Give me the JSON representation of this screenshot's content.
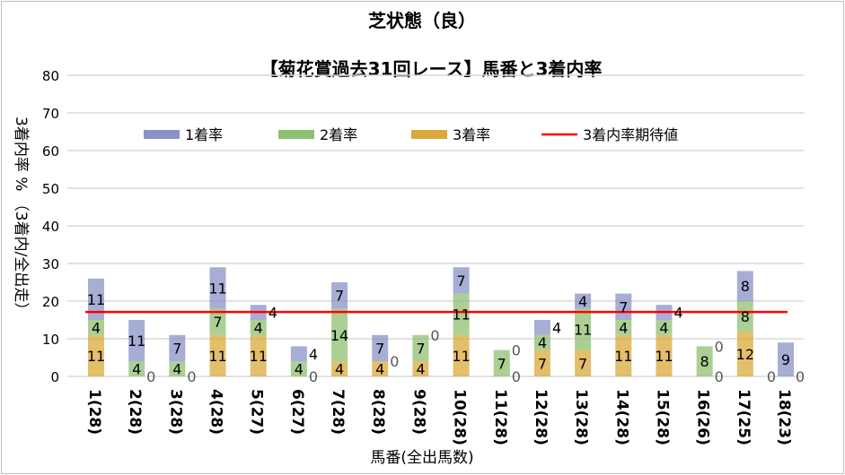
{
  "chart_data": {
    "type": "bar",
    "stacked": true,
    "title": "芝状態（良）",
    "subtitle": "【菊花賞過去31回レース】馬番と3着内率",
    "xlabel": "馬番(全出馬数)",
    "ylabel": "3着内率 %  （3着内/全出走）",
    "ylim": [
      0,
      80
    ],
    "yticks": [
      0,
      10,
      20,
      30,
      40,
      50,
      60,
      70,
      80
    ],
    "grid": true,
    "legend_position": "top",
    "categories": [
      "1(28)",
      "2(28)",
      "3(28)",
      "4(28)",
      "5(27)",
      "6(27)",
      "7(28)",
      "8(28)",
      "9(28)",
      "10(28)",
      "11(28)",
      "12(28)",
      "13(28)",
      "14(28)",
      "15(28)",
      "16(26)",
      "17(25)",
      "18(23)"
    ],
    "series": [
      {
        "name": "3着率",
        "color": "#d9a93a",
        "values": [
          11,
          0,
          0,
          11,
          11,
          0,
          4,
          4,
          4,
          11,
          0,
          7,
          7,
          11,
          11,
          0,
          12,
          0
        ]
      },
      {
        "name": "2着率",
        "color": "#8fbf72",
        "values": [
          4,
          4,
          4,
          7,
          4,
          4,
          14,
          0,
          7,
          11,
          7,
          4,
          11,
          4,
          4,
          8,
          8,
          0
        ]
      },
      {
        "name": "1着率",
        "color": "#8b92c8",
        "values": [
          11,
          11,
          7,
          11,
          4,
          4,
          7,
          7,
          0,
          7,
          0,
          4,
          4,
          7,
          4,
          0,
          8,
          9
        ]
      }
    ],
    "reference_line": {
      "name": "3着内率期待値",
      "color": "#ff0000",
      "value": 17.1
    }
  }
}
